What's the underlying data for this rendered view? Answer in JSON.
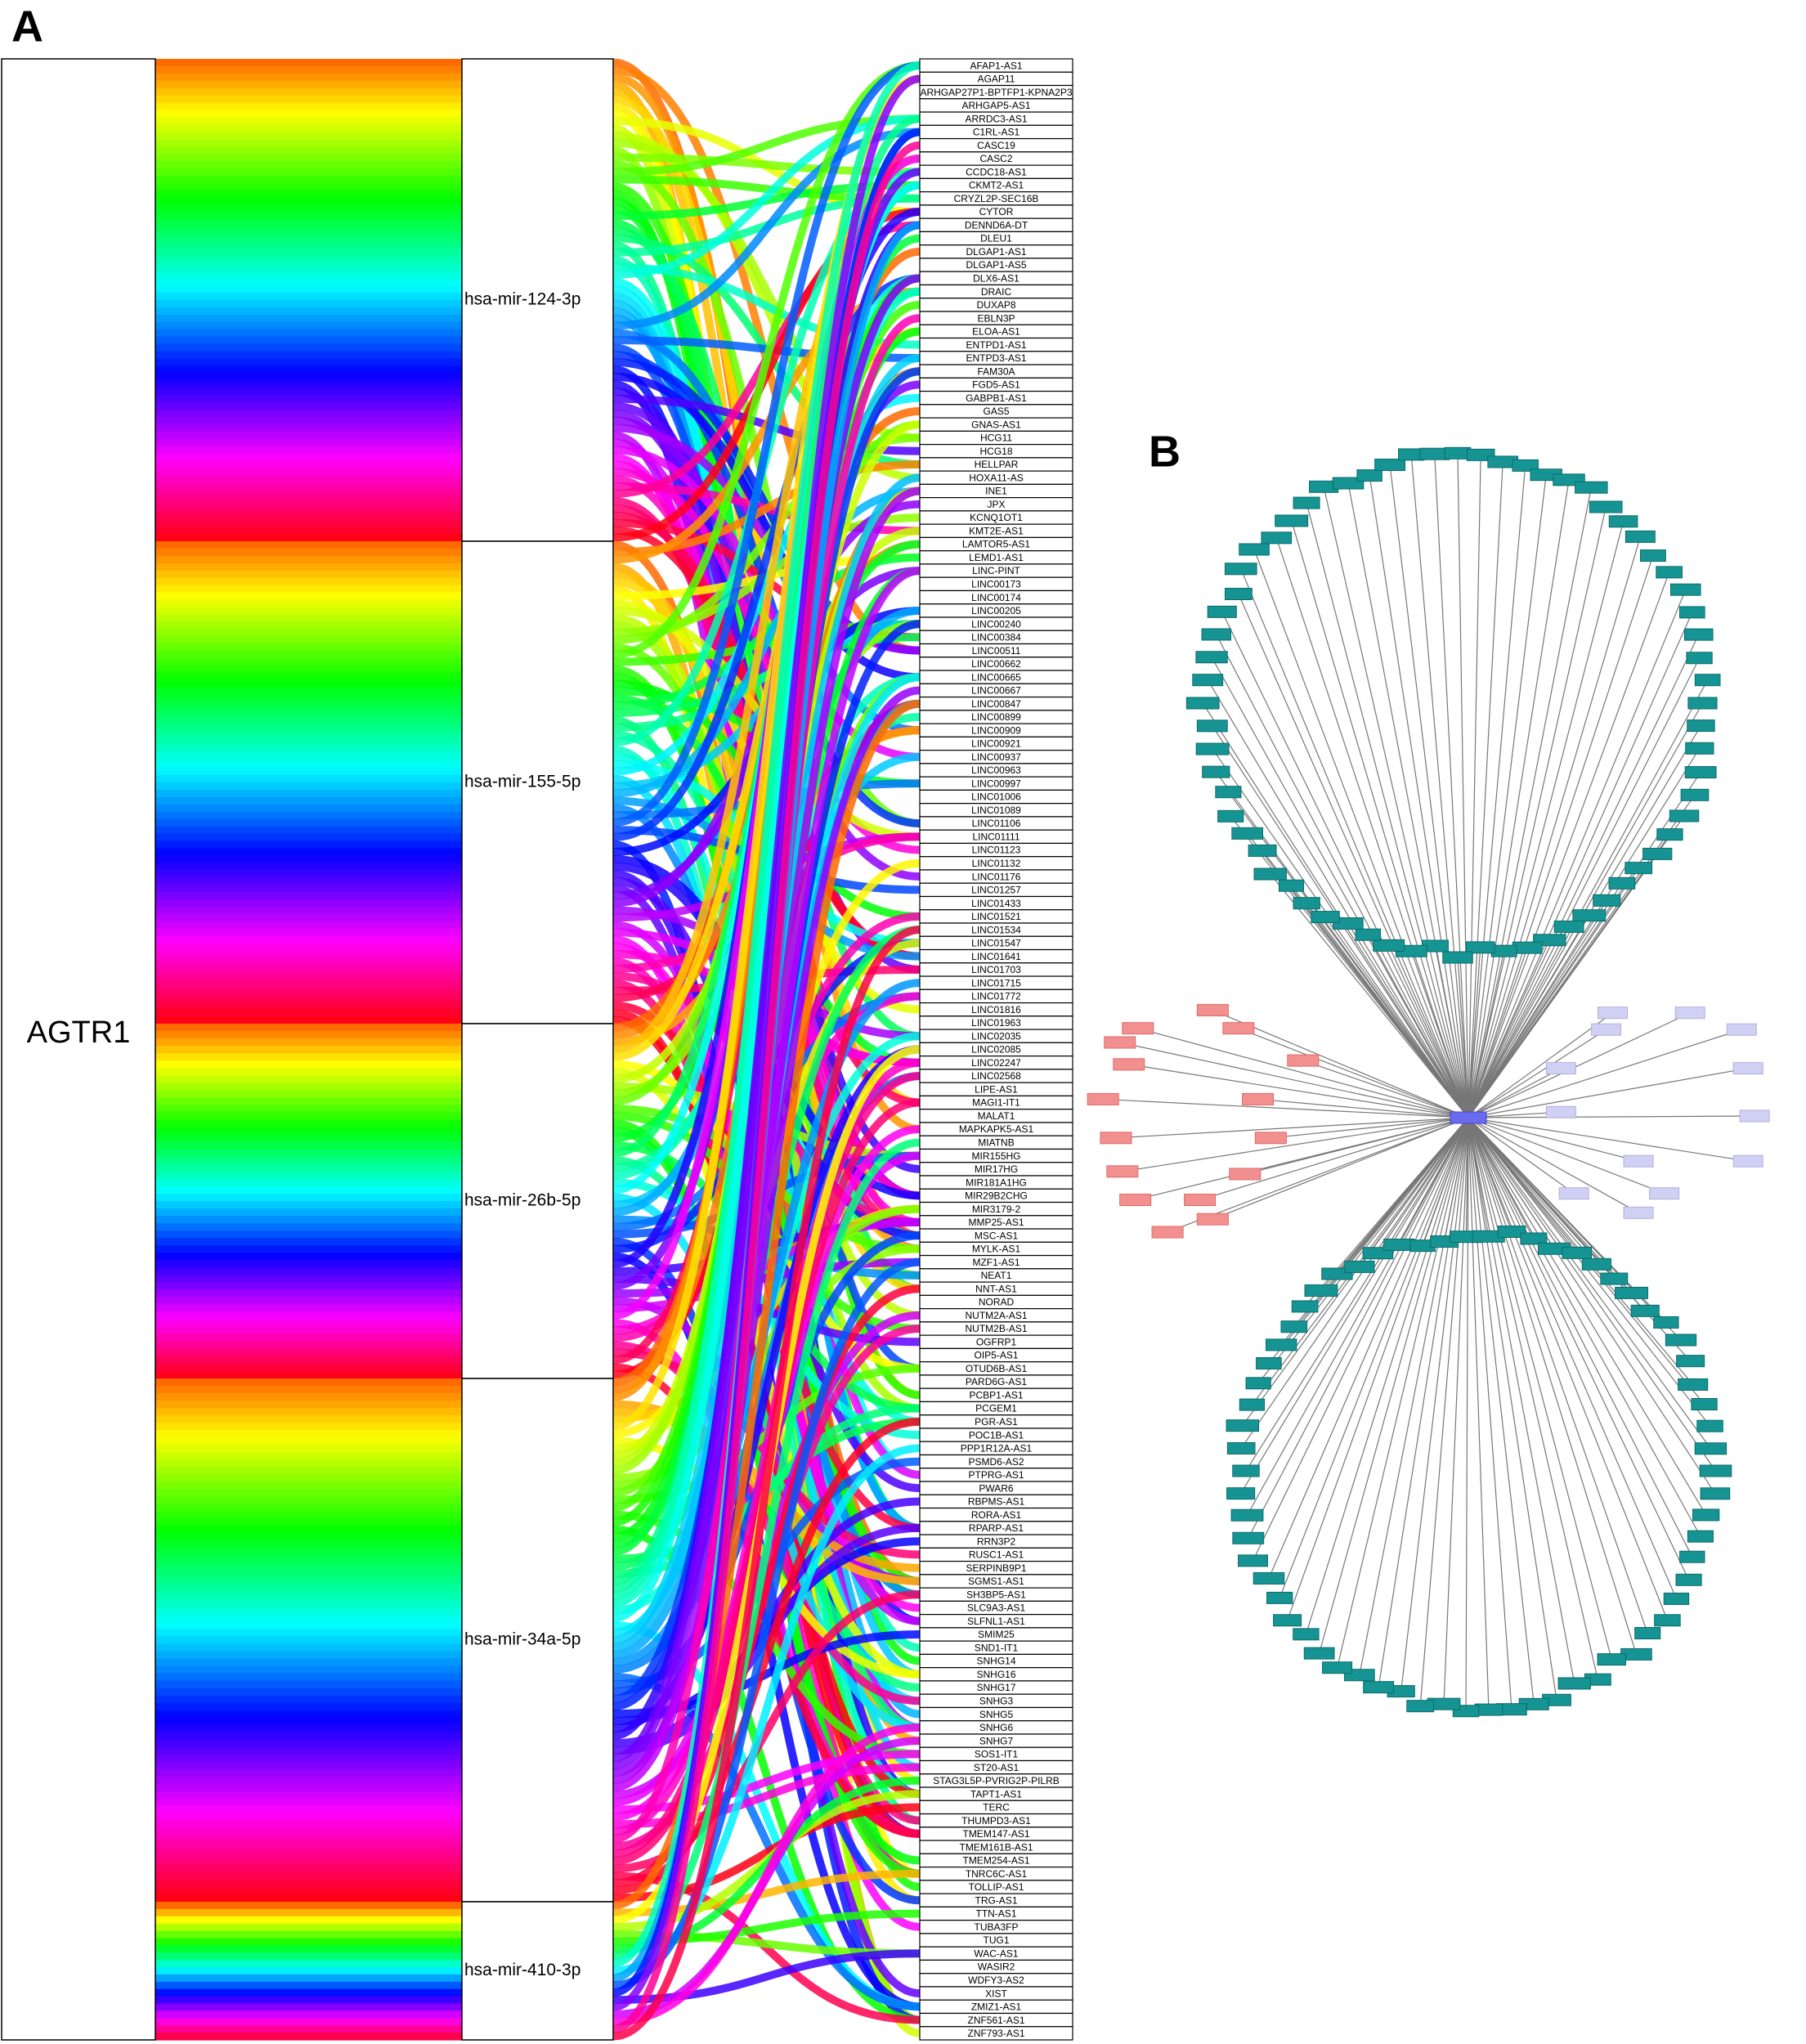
{
  "panel_a": {
    "label": "A",
    "source": "AGTR1",
    "mirnas": [
      "hsa-mir-124-3p",
      "hsa-mir-155-5p",
      "hsa-mir-26b-5p",
      "hsa-mir-34a-5p",
      "hsa-mir-410-3p"
    ],
    "lncrnas": [
      "AFAP1-AS1",
      "AGAP11",
      "ARHGAP27P1-BPTFP1-KPNA2P3",
      "ARHGAP5-AS1",
      "ARRDC3-AS1",
      "C1RL-AS1",
      "CASC19",
      "CASC2",
      "CCDC18-AS1",
      "CKMT2-AS1",
      "CRYZL2P-SEC16B",
      "CYTOR",
      "DENND6A-DT",
      "DLEU1",
      "DLGAP1-AS1",
      "DLGAP1-AS5",
      "DLX6-AS1",
      "DRAIC",
      "DUXAP8",
      "EBLN3P",
      "ELOA-AS1",
      "ENTPD1-AS1",
      "ENTPD3-AS1",
      "FAM30A",
      "FGD5-AS1",
      "GABPB1-AS1",
      "GAS5",
      "GNAS-AS1",
      "HCG11",
      "HCG18",
      "HELLPAR",
      "HOXA11-AS",
      "INE1",
      "JPX",
      "KCNQ1OT1",
      "KMT2E-AS1",
      "LAMTOR5-AS1",
      "LEMD1-AS1",
      "LINC-PINT",
      "LINC00173",
      "LINC00174",
      "LINC00205",
      "LINC00240",
      "LINC00384",
      "LINC00511",
      "LINC00662",
      "LINC00665",
      "LINC00667",
      "LINC00847",
      "LINC00899",
      "LINC00909",
      "LINC00921",
      "LINC00937",
      "LINC00963",
      "LINC00997",
      "LINC01006",
      "LINC01089",
      "LINC01106",
      "LINC01111",
      "LINC01123",
      "LINC01132",
      "LINC01176",
      "LINC01257",
      "LINC01433",
      "LINC01521",
      "LINC01534",
      "LINC01547",
      "LINC01641",
      "LINC01703",
      "LINC01715",
      "LINC01772",
      "LINC01816",
      "LINC01963",
      "LINC02035",
      "LINC02085",
      "LINC02247",
      "LINC02568",
      "LIPE-AS1",
      "MAGI1-IT1",
      "MALAT1",
      "MAPKAPK5-AS1",
      "MIATNB",
      "MIR155HG",
      "MIR17HG",
      "MIR181A1HG",
      "MIR29B2CHG",
      "MIR3179-2",
      "MMP25-AS1",
      "MSC-AS1",
      "MYLK-AS1",
      "MZF1-AS1",
      "NEAT1",
      "NNT-AS1",
      "NORAD",
      "NUTM2A-AS1",
      "NUTM2B-AS1",
      "OGFRP1",
      "OIP5-AS1",
      "OTUD6B-AS1",
      "PARD6G-AS1",
      "PCBP1-AS1",
      "PCGEM1",
      "PGR-AS1",
      "POC1B-AS1",
      "PPP1R12A-AS1",
      "PSMD6-AS2",
      "PTPRG-AS1",
      "PWAR6",
      "RBPMS-AS1",
      "RORA-AS1",
      "RPARP-AS1",
      "RRN3P2",
      "RUSC1-AS1",
      "SERPINB9P1",
      "SGMS1-AS1",
      "SH3BP5-AS1",
      "SLC9A3-AS1",
      "SLFNL1-AS1",
      "SMIM25",
      "SND1-IT1",
      "SNHG14",
      "SNHG16",
      "SNHG17",
      "SNHG3",
      "SNHG5",
      "SNHG6",
      "SNHG7",
      "SOS1-IT1",
      "ST20-AS1",
      "STAG3L5P-PVRIG2P-PILRB",
      "TAPT1-AS1",
      "TERC",
      "THUMPD3-AS1",
      "TMEM147-AS1",
      "TMEM161B-AS1",
      "TMEM254-AS1",
      "TNRC6C-AS1",
      "TOLLIP-AS1",
      "TRG-AS1",
      "TTN-AS1",
      "TUBA3FP",
      "TUG1",
      "WAC-AS1",
      "WASIR2",
      "WDFY3-AS2",
      "XIST",
      "ZMIZ1-AS1",
      "ZNF561-AS1",
      "ZNF793-AS1"
    ]
  },
  "panel_b": {
    "label": "B"
  }
}
